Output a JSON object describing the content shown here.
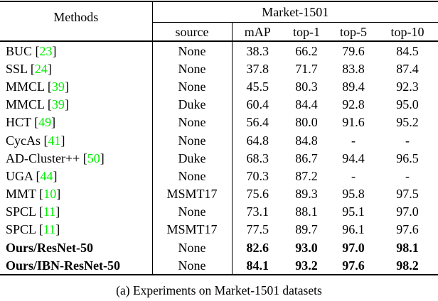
{
  "table": {
    "header": {
      "methods_label": "Methods",
      "dataset_label": "Market-1501",
      "sub_columns": [
        "source",
        "mAP",
        "top-1",
        "top-5",
        "top-10"
      ]
    },
    "rows": [
      {
        "method": "BUC",
        "cite": "23",
        "source": "None",
        "values": [
          "38.3",
          "66.2",
          "79.6",
          "84.5"
        ],
        "bold": false
      },
      {
        "method": "SSL",
        "cite": "24",
        "source": "None",
        "values": [
          "37.8",
          "71.7",
          "83.8",
          "87.4"
        ],
        "bold": false
      },
      {
        "method": "MMCL",
        "cite": "39",
        "source": "None",
        "values": [
          "45.5",
          "80.3",
          "89.4",
          "92.3"
        ],
        "bold": false
      },
      {
        "method": "MMCL",
        "cite": "39",
        "source": "Duke",
        "values": [
          "60.4",
          "84.4",
          "92.8",
          "95.0"
        ],
        "bold": false
      },
      {
        "method": "HCT",
        "cite": "49",
        "source": "None",
        "values": [
          "56.4",
          "80.0",
          "91.6",
          "95.2"
        ],
        "bold": false
      },
      {
        "method": "CycAs",
        "cite": "41",
        "source": "None",
        "values": [
          "64.8",
          "84.8",
          "-",
          "-"
        ],
        "bold": false
      },
      {
        "method": "AD-Cluster++",
        "cite": "50",
        "source": "Duke",
        "values": [
          "68.3",
          "86.7",
          "94.4",
          "96.5"
        ],
        "bold": false
      },
      {
        "method": "UGA",
        "cite": "44",
        "source": "None",
        "values": [
          "70.3",
          "87.2",
          "-",
          "-"
        ],
        "bold": false
      },
      {
        "method": "MMT",
        "cite": "10",
        "source": "MSMT17",
        "values": [
          "75.6",
          "89.3",
          "95.8",
          "97.5"
        ],
        "bold": false
      },
      {
        "method": "SPCL",
        "cite": "11",
        "source": "None",
        "values": [
          "73.1",
          "88.1",
          "95.1",
          "97.0"
        ],
        "bold": false
      },
      {
        "method": "SPCL",
        "cite": "11",
        "source": "MSMT17",
        "values": [
          "77.5",
          "89.7",
          "96.1",
          "97.6"
        ],
        "bold": false
      },
      {
        "method": "Ours/ResNet-50",
        "cite": "",
        "source": "None",
        "values": [
          "82.6",
          "93.0",
          "97.0",
          "98.1"
        ],
        "bold": true
      },
      {
        "method": "Ours/IBN-ResNet-50",
        "cite": "",
        "source": "None",
        "values": [
          "84.1",
          "93.2",
          "97.6",
          "98.2"
        ],
        "bold": true
      }
    ],
    "caption": "(a) Experiments on Market-1501 datasets"
  },
  "colors": {
    "citation_green": "#00ee00",
    "text": "#000000",
    "background": "#ffffff"
  }
}
